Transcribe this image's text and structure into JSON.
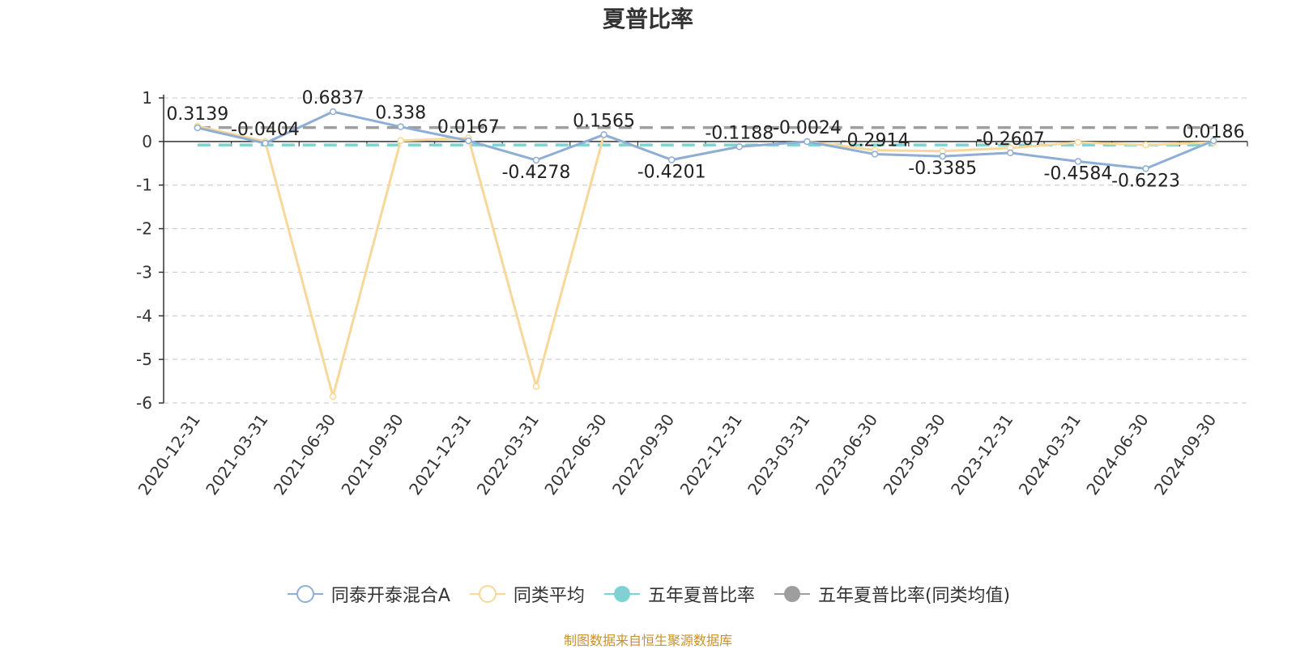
{
  "chart_data": {
    "type": "line",
    "title": "夏普比率",
    "categories": [
      "2020-12-31",
      "2021-03-31",
      "2021-06-30",
      "2021-09-30",
      "2021-12-31",
      "2022-03-31",
      "2022-06-30",
      "2022-09-30",
      "2022-12-31",
      "2023-03-31",
      "2023-06-30",
      "2023-09-30",
      "2023-12-31",
      "2024-03-31",
      "2024-06-30",
      "2024-09-30"
    ],
    "ylim": [
      -6,
      1
    ],
    "yticks": [
      1,
      0,
      -1,
      -2,
      -3,
      -4,
      -5,
      -6
    ],
    "grid": true,
    "legend_position": "bottom",
    "series": [
      {
        "name": "同泰开泰混合A",
        "color": "#8eaed6",
        "values": [
          0.3139,
          -0.0404,
          0.6837,
          0.338,
          0.0167,
          -0.4278,
          0.1565,
          -0.4201,
          -0.1188,
          -0.0024,
          -0.2914,
          -0.3385,
          -0.2607,
          -0.4584,
          -0.6223,
          0.0186
        ],
        "labels": [
          "0.3139",
          "-0.0404",
          "0.6837",
          "0.338",
          "0.0167",
          "-0.4278",
          "0.1565",
          "-0.4201",
          "-0.1188",
          "-0.0024",
          "-0.2914",
          "-0.3385",
          "-0.2607",
          "-0.4584",
          "-0.6223",
          "0.0186"
        ]
      },
      {
        "name": "同类平均",
        "color": "#f7d899",
        "values": [
          0.35,
          0.0,
          -5.85,
          0.02,
          0.08,
          -5.62,
          0.15,
          -0.42,
          -0.12,
          -0.0,
          -0.2,
          -0.22,
          -0.15,
          -0.02,
          -0.08,
          -0.02
        ]
      },
      {
        "name": "五年夏普比率",
        "color": "#7fd1d3",
        "constant": -0.08
      },
      {
        "name": "五年夏普比率(同类均值)",
        "color": "#9e9e9e",
        "constant": 0.32
      }
    ]
  },
  "legend": {
    "items": [
      {
        "label": "同泰开泰混合A",
        "color": "#8eaed6",
        "icon": "hollow-circle-line-icon"
      },
      {
        "label": "同类平均",
        "color": "#f7d899",
        "icon": "hollow-circle-line-icon"
      },
      {
        "label": "五年夏普比率",
        "color": "#7fd1d3",
        "icon": "filled-circle-line-icon"
      },
      {
        "label": "五年夏普比率(同类均值)",
        "color": "#9e9e9e",
        "icon": "filled-circle-line-icon"
      }
    ]
  },
  "source_note": "制图数据来自恒生聚源数据库"
}
